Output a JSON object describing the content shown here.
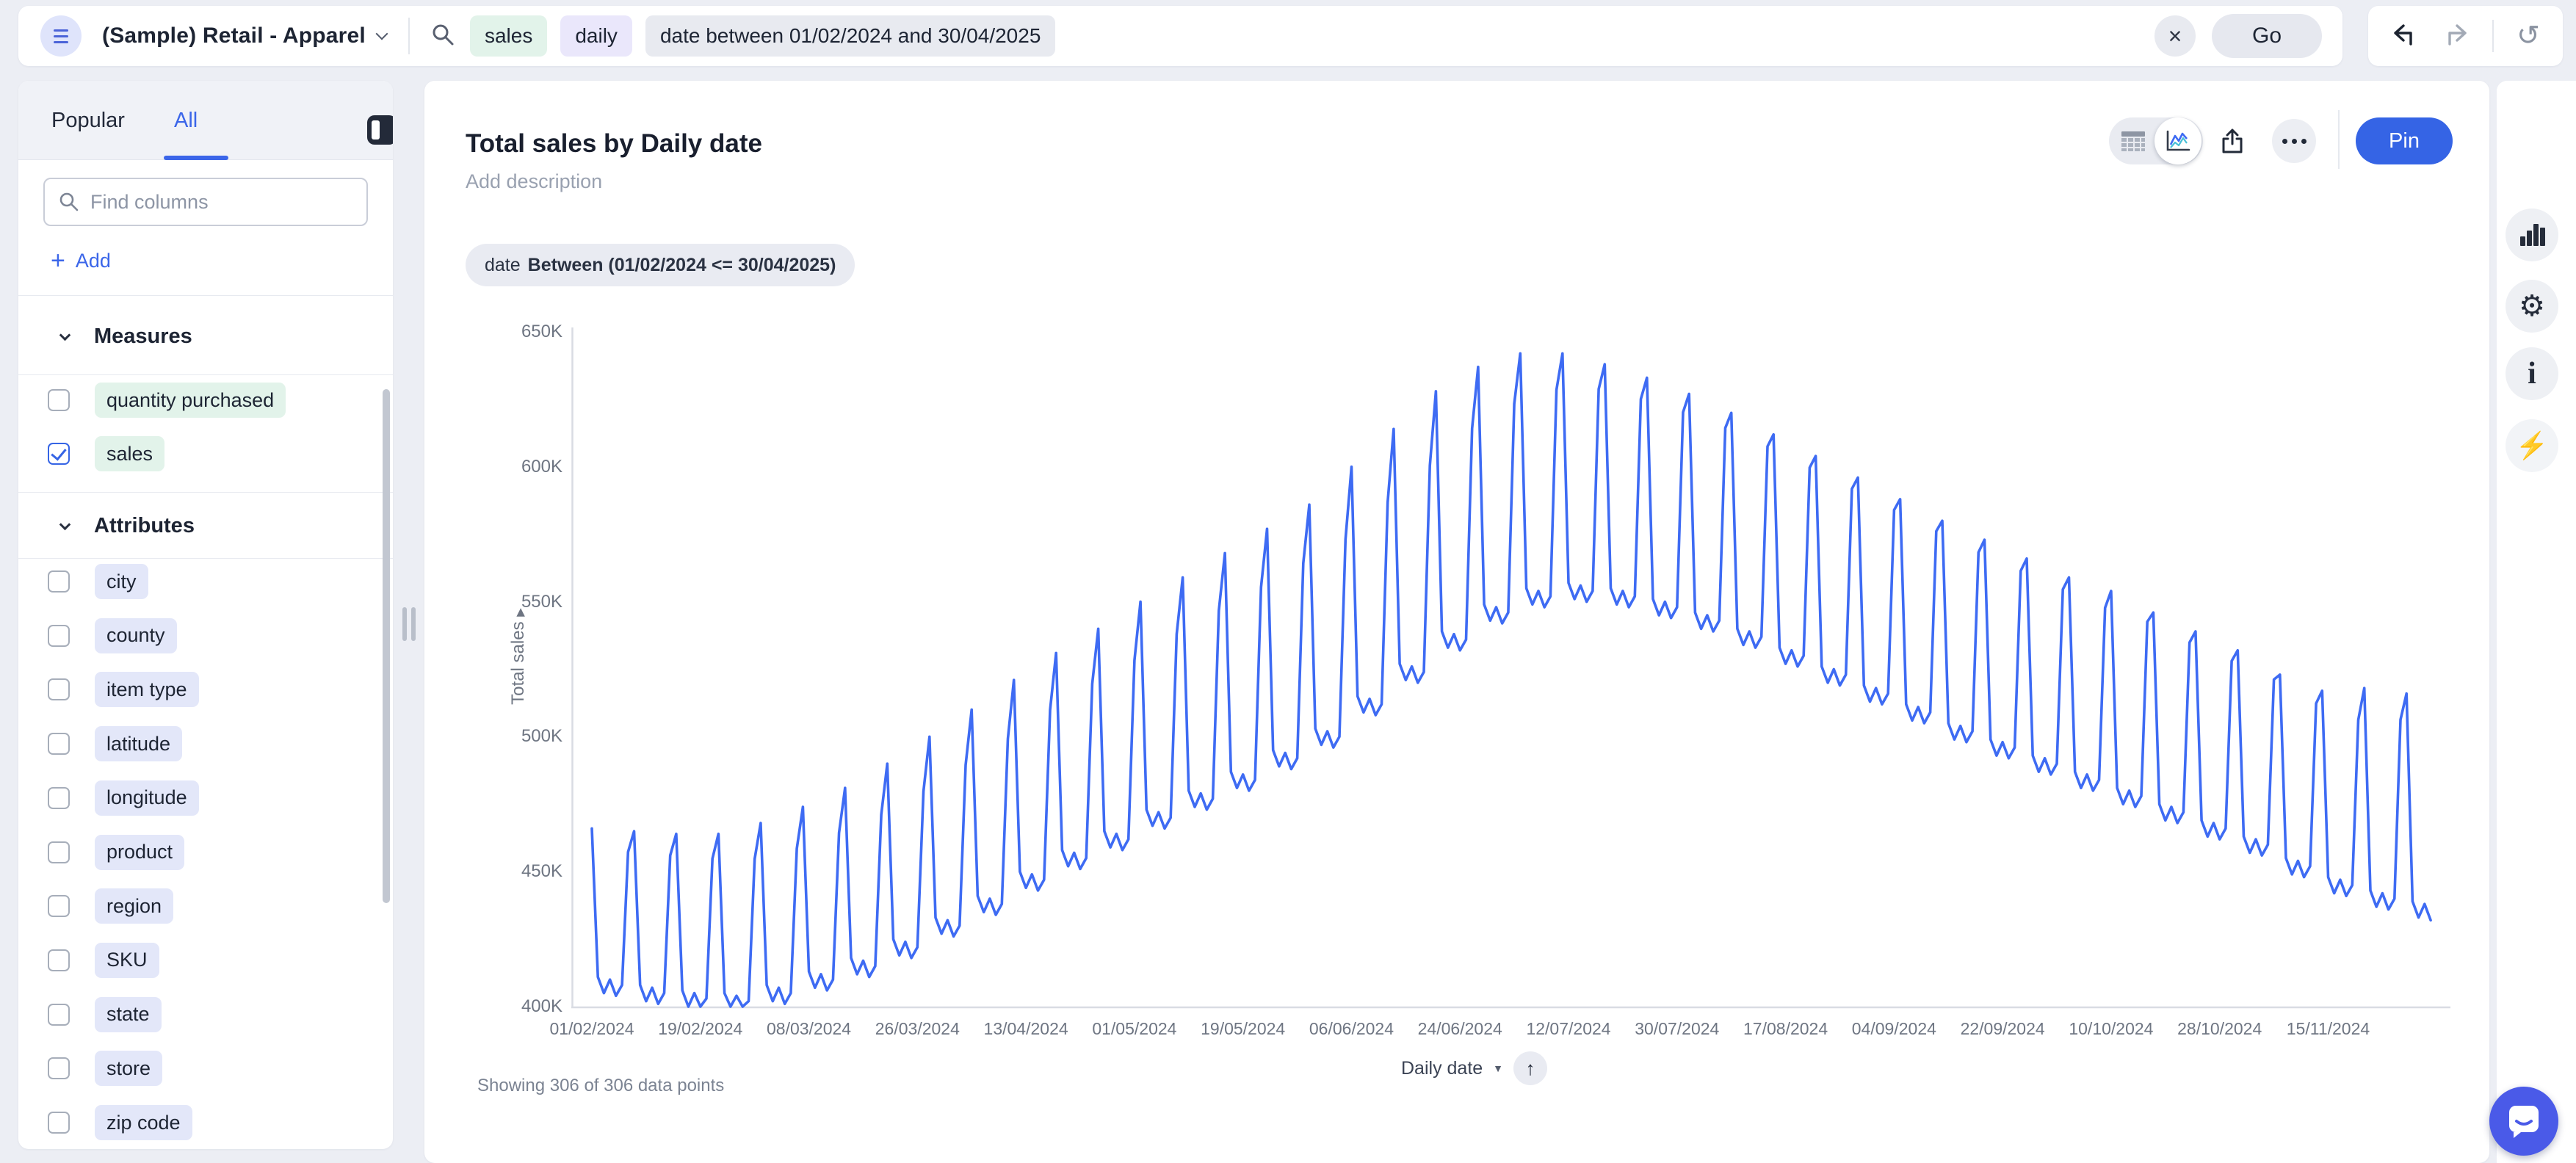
{
  "topbar": {
    "workspace_label": "(Sample) Retail - Apparel",
    "search_tokens": [
      {
        "text": "sales",
        "type": "measure"
      },
      {
        "text": "daily",
        "type": "keyword"
      },
      {
        "text": "date between 01/02/2024 and 30/04/2025",
        "type": "filter"
      }
    ],
    "go_label": "Go"
  },
  "sidebar": {
    "tabs": [
      {
        "label": "Popular",
        "active": false
      },
      {
        "label": "All",
        "active": true
      }
    ],
    "find_placeholder": "Find columns",
    "add_label": "Add",
    "sections": [
      {
        "title": "Measures",
        "type": "measure",
        "items": [
          {
            "label": "quantity purchased",
            "checked": false
          },
          {
            "label": "sales",
            "checked": true
          }
        ]
      },
      {
        "title": "Attributes",
        "type": "attribute",
        "items": [
          {
            "label": "city",
            "checked": false
          },
          {
            "label": "county",
            "checked": false
          },
          {
            "label": "item type",
            "checked": false
          },
          {
            "label": "latitude",
            "checked": false
          },
          {
            "label": "longitude",
            "checked": false
          },
          {
            "label": "product",
            "checked": false
          },
          {
            "label": "region",
            "checked": false
          },
          {
            "label": "SKU",
            "checked": false
          },
          {
            "label": "state",
            "checked": false
          },
          {
            "label": "store",
            "checked": false
          },
          {
            "label": "zip code",
            "checked": false
          }
        ]
      }
    ]
  },
  "main": {
    "title": "Total sales by Daily date",
    "description_placeholder": "Add description",
    "filter_chip": {
      "field": "date",
      "condition": "Between (01/02/2024 <= 30/04/2025)"
    },
    "pin_label": "Pin",
    "footer": {
      "showing_text": "Showing 306 of 306 data points",
      "x_field_label": "Daily date"
    }
  },
  "icons": {
    "close": "×",
    "reset": "↺",
    "gear": "⚙",
    "info": "i",
    "bolt": "⚡",
    "up_arrow": "↑",
    "caret_down": "▼",
    "sort_right": "▶",
    "add_plus": "+"
  },
  "colors": {
    "line_blue": "#3e6bf3",
    "accent_blue": "#3564e5",
    "link_blue": "#3b66e9",
    "chat_indigo": "#4a5ae8",
    "token_green": "#e2f3ea",
    "token_purple": "#eae7fb",
    "token_gray": "#e8eaf0",
    "token_lavender": "#e3e7f9",
    "axis_gray": "#d9dce3",
    "tick_text": "#6e7582"
  },
  "chart_data": {
    "type": "line",
    "title": "Total sales by Daily date",
    "xlabel": "Daily date",
    "ylabel": "Total sales",
    "series_name": "Total sales",
    "n_points": 306,
    "x_start": "01/02/2024",
    "x_end": "02/12/2024",
    "ylim": [
      400000,
      650000
    ],
    "y_tick_labels": [
      "650K",
      "600K",
      "550K",
      "500K",
      "450K",
      "400K"
    ],
    "x_tick_labels": [
      "01/02/2024",
      "19/02/2024",
      "08/03/2024",
      "26/03/2024",
      "13/04/2024",
      "01/05/2024",
      "19/05/2024",
      "06/06/2024",
      "24/06/2024",
      "12/07/2024",
      "30/07/2024",
      "17/08/2024",
      "04/09/2024",
      "22/09/2024",
      "10/10/2024",
      "28/10/2024",
      "15/11/2024"
    ],
    "x_tick_interval_days": 18,
    "gridlines": false,
    "legend": "none",
    "line_color": "#3e6bf3",
    "pattern_note": "daily series with weekly spikes; values in thousands, per-week low plateau and spike peak read from chart",
    "weekly_lows_k": [
      408,
      405,
      403,
      402,
      405,
      410,
      415,
      422,
      430,
      438,
      447,
      455,
      462,
      470,
      477,
      484,
      492,
      500,
      512,
      524,
      536,
      546,
      552,
      554,
      552,
      548,
      543,
      537,
      530,
      523,
      516,
      509,
      502,
      496,
      490,
      484,
      478,
      472,
      466,
      460,
      452,
      445,
      440,
      436
    ],
    "weekly_peaks_k": [
      466,
      465,
      464,
      464,
      468,
      474,
      481,
      490,
      500,
      510,
      521,
      531,
      540,
      550,
      559,
      568,
      577,
      586,
      600,
      614,
      628,
      637,
      642,
      642,
      638,
      633,
      627,
      620,
      612,
      604,
      596,
      588,
      580,
      573,
      566,
      559,
      554,
      546,
      539,
      532,
      523,
      517,
      518,
      516
    ],
    "intra_week_offsets_k": [
      "peak",
      3,
      -3,
      2,
      -4,
      0,
      "rise"
    ],
    "rise_fraction": 0.85
  }
}
